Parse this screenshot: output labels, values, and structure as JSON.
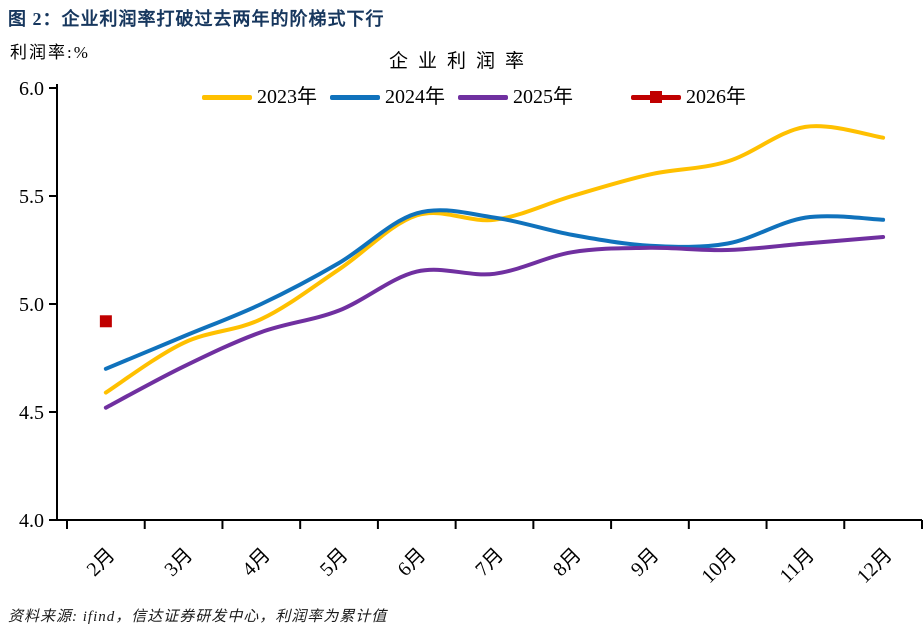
{
  "figure": {
    "title": "图 2：企业利润率打破过去两年的阶梯式下行",
    "source_note": "资料来源: ifind，信达证券研发中心，利润率为累计值"
  },
  "colors": {
    "figure_title": "#17375E",
    "axis": "#000000"
  },
  "chart_data": {
    "type": "line",
    "title": "企业利润率",
    "ylabel": "利润率:%",
    "xlabel": "",
    "grid": false,
    "legend_position": "top",
    "categories": [
      "2月",
      "3月",
      "4月",
      "5月",
      "6月",
      "7月",
      "8月",
      "9月",
      "10月",
      "11月",
      "12月"
    ],
    "ylim": [
      4.0,
      6.0
    ],
    "y_ticks": [
      "6.0",
      "5.5",
      "5.0",
      "4.5",
      "4.0"
    ],
    "series": [
      {
        "name": "2023年",
        "color": "#FFC000",
        "marker": "none",
        "smooth": true,
        "values": [
          4.59,
          4.82,
          4.93,
          5.16,
          5.41,
          5.39,
          5.5,
          5.6,
          5.66,
          5.82,
          5.77
        ]
      },
      {
        "name": "2024年",
        "color": "#1072BC",
        "marker": "none",
        "smooth": true,
        "values": [
          4.7,
          4.85,
          5.0,
          5.19,
          5.42,
          5.4,
          5.32,
          5.27,
          5.28,
          5.4,
          5.39
        ]
      },
      {
        "name": "2025年",
        "color": "#7030A0",
        "marker": "none",
        "smooth": true,
        "values": [
          4.52,
          4.71,
          4.87,
          4.97,
          5.15,
          5.14,
          5.24,
          5.26,
          5.25,
          5.28,
          5.31
        ]
      },
      {
        "name": "2026年",
        "color": "#C00000",
        "marker": "square",
        "smooth": false,
        "values": [
          4.92
        ]
      }
    ]
  }
}
